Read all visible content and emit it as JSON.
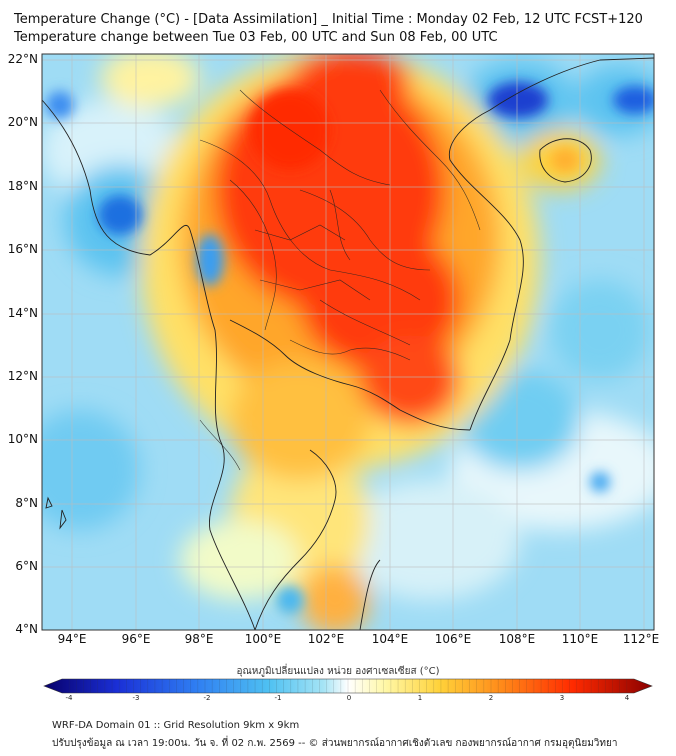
{
  "header": {
    "title_line1": "Temperature Change (°C) - [Data Assimilation] _ Initial Time : Monday 02 Feb, 12 UTC FCST+120",
    "title_line2": "Temperature change between Tue 03 Feb, 00 UTC and Sun 08 Feb, 00 UTC"
  },
  "axes": {
    "lat_labels": [
      "22°N",
      "20°N",
      "18°N",
      "16°N",
      "14°N",
      "12°N",
      "10°N",
      "8°N",
      "6°N",
      "4°N"
    ],
    "lon_labels": [
      "94°E",
      "96°E",
      "98°E",
      "100°E",
      "102°E",
      "104°E",
      "106°E",
      "108°E",
      "110°E",
      "112°E"
    ]
  },
  "colorbar": {
    "title": "อุณหภูมิเปลี่ยนแปลง หน่วย องศาเซลเซียส (°C)",
    "ticks": [
      "-4",
      "-3",
      "-2",
      "-1",
      "0",
      "1",
      "2",
      "3",
      "4"
    ],
    "colors": [
      "#08006b",
      "#1a2fd6",
      "#2f7ef2",
      "#4fc1f2",
      "#a6e4f5",
      "#ffffff",
      "#fff8a8",
      "#ffd23a",
      "#ff8c1a",
      "#ff2a00",
      "#8a0000"
    ]
  },
  "footer": {
    "line1": "WRF-DA Domain 01 :: Grid Resolution 9km x 9km",
    "line2": "ปรับปรุงข้อมูล ณ เวลา 19:00น. วัน จ. ที่ 02 ก.พ. 2569 -- © ส่วนพยากรณ์อากาศเชิงตัวเลข กองพยากรณ์อากาศ กรมอุตุนิยมวิทยา"
  },
  "legend_colors": {
    "cold_core": "#1a3fd0",
    "cool": "#7fd3f5",
    "warm": "#ffd84a",
    "hot": "#ff3a10"
  }
}
